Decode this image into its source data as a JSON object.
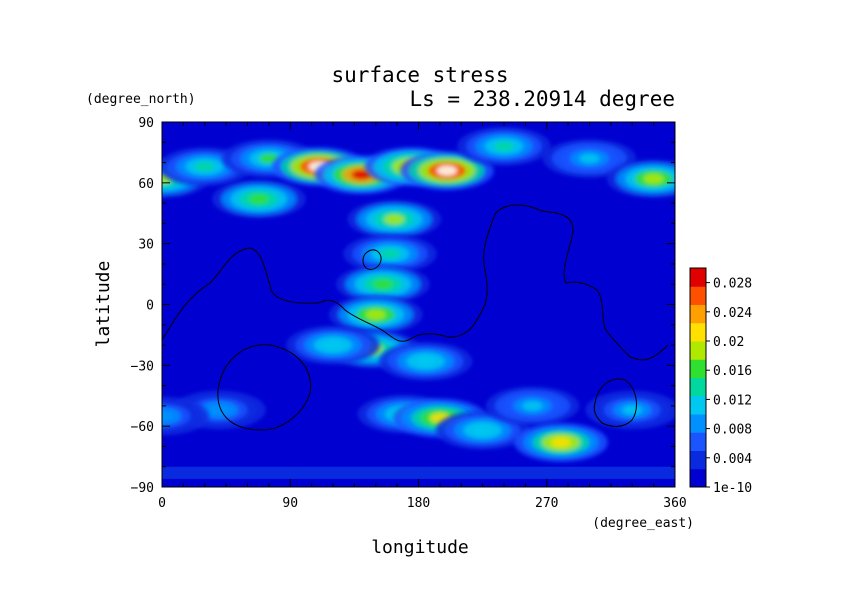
{
  "chart_data": {
    "type": "heatmap",
    "title": "surface stress",
    "subtitle": "Ls = 238.20914 degree",
    "xlabel": "longitude",
    "ylabel": "latitude",
    "x_unit": "(degree_east)",
    "y_unit": "(degree_north)",
    "xlim": [
      0,
      360
    ],
    "ylim": [
      -90,
      90
    ],
    "x_ticks": [
      "0",
      "90",
      "180",
      "270",
      "360"
    ],
    "y_ticks": [
      "90",
      "60",
      "30",
      "0",
      "−30",
      "−60",
      "−90"
    ],
    "colorbar": {
      "ticks": [
        "1e-10",
        "0.004",
        "0.008",
        "0.012",
        "0.016",
        "0.02",
        "0.024",
        "0.028"
      ],
      "range": [
        0,
        0.03
      ]
    },
    "colormap": [
      "#0000d0",
      "#0a2ae0",
      "#1a55ff",
      "#0090ff",
      "#00c8f0",
      "#00d8a0",
      "#30e030",
      "#b0e800",
      "#ffe000",
      "#ffa000",
      "#ff5000",
      "#e00000",
      "#ffffff"
    ],
    "field": [
      {
        "lon": 0,
        "lat": 62,
        "value": 0.017
      },
      {
        "lon": 30,
        "lat": 68,
        "value": 0.012
      },
      {
        "lon": 75,
        "lat": 72,
        "value": 0.014
      },
      {
        "lon": 110,
        "lat": 68,
        "value": 0.03
      },
      {
        "lon": 140,
        "lat": 64,
        "value": 0.027
      },
      {
        "lon": 175,
        "lat": 68,
        "value": 0.022
      },
      {
        "lon": 200,
        "lat": 66,
        "value": 0.03
      },
      {
        "lon": 240,
        "lat": 78,
        "value": 0.013
      },
      {
        "lon": 300,
        "lat": 72,
        "value": 0.01
      },
      {
        "lon": 345,
        "lat": 62,
        "value": 0.018
      },
      {
        "lon": 68,
        "lat": 52,
        "value": 0.016
      },
      {
        "lon": 163,
        "lat": 42,
        "value": 0.017
      },
      {
        "lon": 160,
        "lat": 25,
        "value": 0.012
      },
      {
        "lon": 155,
        "lat": 10,
        "value": 0.016
      },
      {
        "lon": 150,
        "lat": -5,
        "value": 0.018
      },
      {
        "lon": 148,
        "lat": -22,
        "value": 0.017
      },
      {
        "lon": 120,
        "lat": -20,
        "value": 0.011
      },
      {
        "lon": 185,
        "lat": -28,
        "value": 0.011
      },
      {
        "lon": 40,
        "lat": -52,
        "value": 0.008
      },
      {
        "lon": 170,
        "lat": -54,
        "value": 0.012
      },
      {
        "lon": 195,
        "lat": -56,
        "value": 0.019
      },
      {
        "lon": 225,
        "lat": -62,
        "value": 0.011
      },
      {
        "lon": 260,
        "lat": -50,
        "value": 0.01
      },
      {
        "lon": 280,
        "lat": -68,
        "value": 0.021
      },
      {
        "lon": 330,
        "lat": -52,
        "value": 0.009
      },
      {
        "lon": 0,
        "lat": -55,
        "value": 0.008
      }
    ]
  }
}
